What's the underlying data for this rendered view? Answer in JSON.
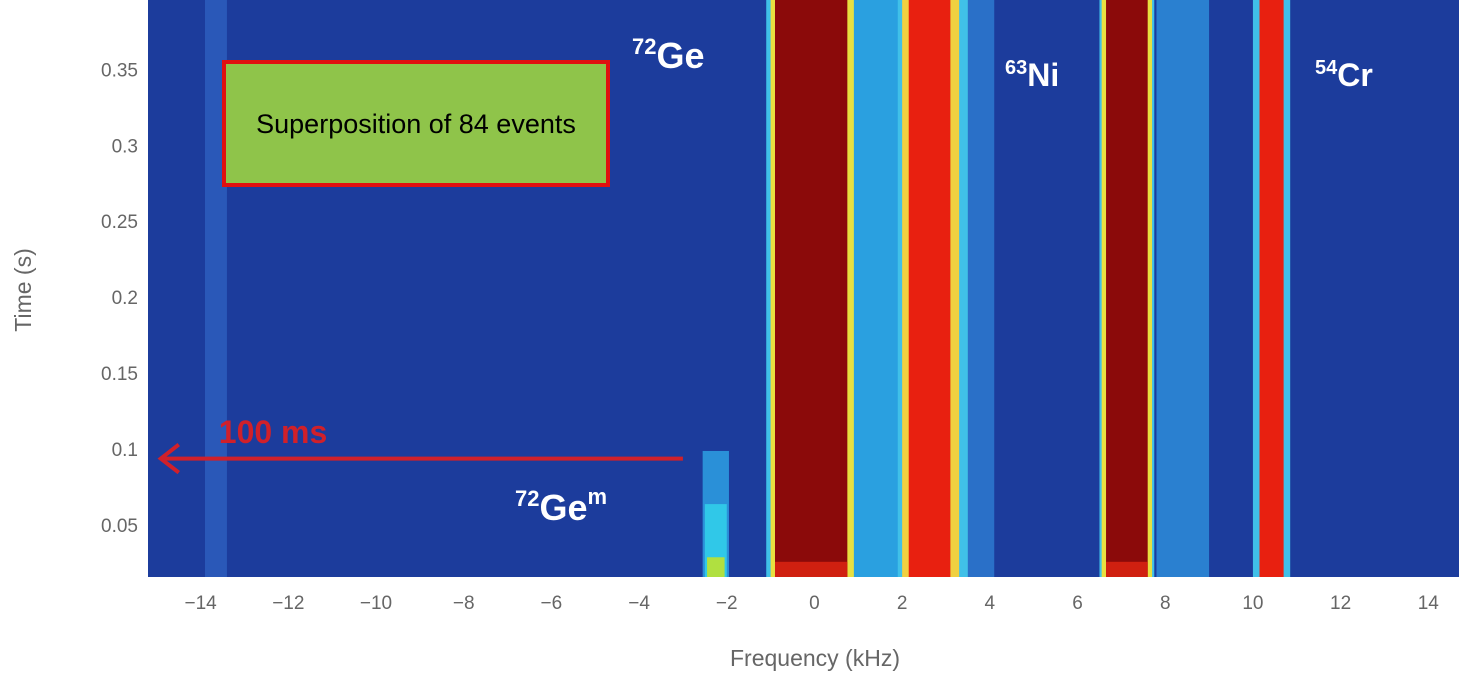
{
  "chart_data": {
    "type": "spectrogram",
    "xlabel": "Frequency (kHz)",
    "ylabel": "Time (s)",
    "xlim": [
      -15.2,
      14.7
    ],
    "ylim": [
      0.017,
      0.397
    ],
    "xticks": [
      {
        "value": -14,
        "label": "−14"
      },
      {
        "value": -12,
        "label": "−12"
      },
      {
        "value": -10,
        "label": "−10"
      },
      {
        "value": -8,
        "label": "−8"
      },
      {
        "value": -6,
        "label": "−6"
      },
      {
        "value": -4,
        "label": "−4"
      },
      {
        "value": -2,
        "label": "−2"
      },
      0,
      2,
      4,
      6,
      8,
      10,
      12,
      14
    ],
    "yticks": [
      0.05,
      0.1,
      0.15,
      0.2,
      0.25,
      0.3,
      0.35
    ],
    "grid": false,
    "background": "#1c3c9c",
    "bands": [
      {
        "x": [
          -13.9,
          -13.4
        ],
        "t": [
          0.017,
          0.397
        ],
        "color": "#2a58b8"
      },
      {
        "x": [
          -1.1,
          1.0
        ],
        "t": [
          0.017,
          0.397
        ],
        "color": "#40c0e8"
      },
      {
        "x": [
          -1.0,
          0.9
        ],
        "t": [
          0.017,
          0.397
        ],
        "color": "#e8e040"
      },
      {
        "x": [
          -0.9,
          0.75
        ],
        "t": [
          0.017,
          0.397
        ],
        "color": "#8b0a0a"
      },
      {
        "x": [
          -0.9,
          0.75
        ],
        "t": [
          0.017,
          0.027
        ],
        "color": "#d02010"
      },
      {
        "x": [
          0.9,
          2.0
        ],
        "t": [
          0.017,
          0.397
        ],
        "color": "#2aa0e0"
      },
      {
        "x": [
          1.9,
          3.5
        ],
        "t": [
          0.017,
          0.397
        ],
        "color": "#40c0e8"
      },
      {
        "x": [
          2.0,
          3.3
        ],
        "t": [
          0.017,
          0.397
        ],
        "color": "#f0d040"
      },
      {
        "x": [
          2.15,
          3.1
        ],
        "t": [
          0.017,
          0.397
        ],
        "color": "#e82010"
      },
      {
        "x": [
          3.5,
          4.1
        ],
        "t": [
          0.017,
          0.397
        ],
        "color": "#2a70c8"
      },
      {
        "x": [
          6.5,
          7.75
        ],
        "t": [
          0.017,
          0.397
        ],
        "color": "#40c0e8"
      },
      {
        "x": [
          6.55,
          7.7
        ],
        "t": [
          0.017,
          0.397
        ],
        "color": "#e8e040"
      },
      {
        "x": [
          6.65,
          7.6
        ],
        "t": [
          0.017,
          0.397
        ],
        "color": "#8b0a0a"
      },
      {
        "x": [
          6.65,
          7.6
        ],
        "t": [
          0.017,
          0.027
        ],
        "color": "#d02010"
      },
      {
        "x": [
          7.8,
          9.0
        ],
        "t": [
          0.017,
          0.397
        ],
        "color": "#2a80d0"
      },
      {
        "x": [
          10.0,
          10.85
        ],
        "t": [
          0.017,
          0.397
        ],
        "color": "#40c0e8"
      },
      {
        "x": [
          10.15,
          10.7
        ],
        "t": [
          0.017,
          0.397
        ],
        "color": "#e82010"
      },
      {
        "x": [
          -2.55,
          -1.95
        ],
        "t": [
          0.017,
          0.1
        ],
        "color": "#2a90d8"
      },
      {
        "x": [
          -2.5,
          -2.0
        ],
        "t": [
          0.017,
          0.065
        ],
        "color": "#30c8e8"
      },
      {
        "x": [
          -2.45,
          -2.05
        ],
        "t": [
          0.017,
          0.03
        ],
        "color": "#b0e040"
      }
    ],
    "annotations": [
      {
        "mass": "72",
        "symbol": "Ge"
      },
      {
        "mass": "72",
        "symbol": "Ge",
        "state": "m"
      },
      {
        "mass": "63",
        "symbol": "Ni"
      },
      {
        "mass": "54",
        "symbol": "Cr"
      }
    ],
    "note": "Superposition of 84 events",
    "arrow": {
      "label": "100 ms",
      "x": [
        -3,
        -15
      ],
      "t": 0.095,
      "color": "#d0202a"
    }
  }
}
